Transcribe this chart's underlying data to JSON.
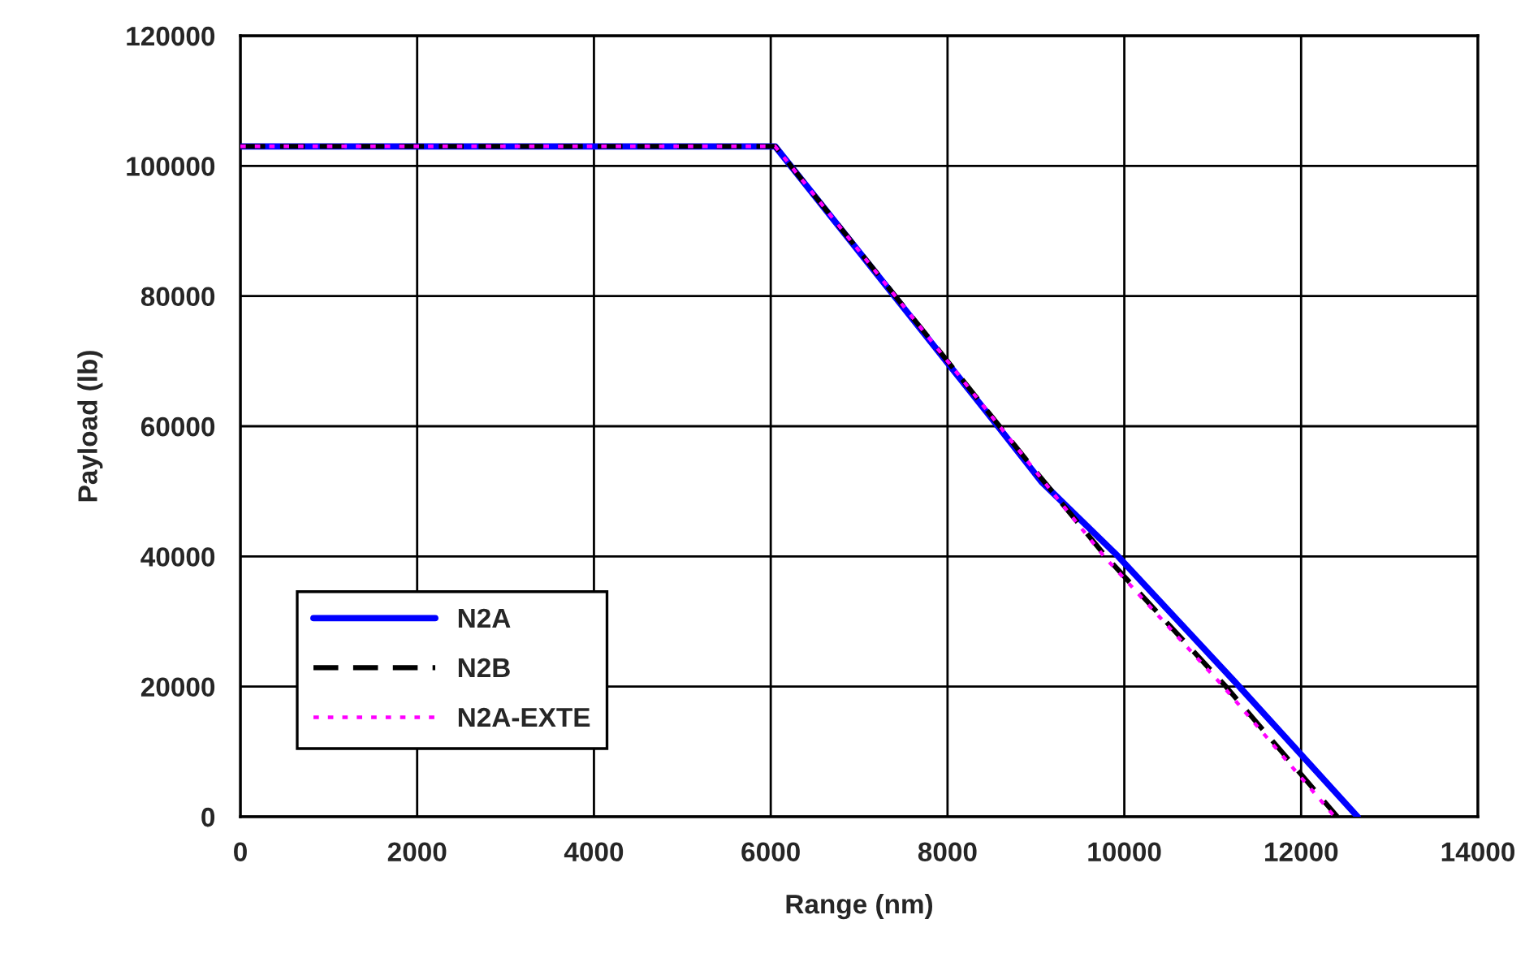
{
  "chart_data": {
    "type": "line",
    "xlabel": "Range (nm)",
    "ylabel": "Payload (lb)",
    "xlim": [
      0,
      14000
    ],
    "xticks": [
      0,
      2000,
      4000,
      6000,
      8000,
      10000,
      12000,
      14000
    ],
    "ylim": [
      0,
      120000
    ],
    "yticks": [
      0,
      20000,
      40000,
      60000,
      80000,
      100000,
      120000
    ],
    "grid": true,
    "legend": "bottom left",
    "marker": "none",
    "series": [
      {
        "name": "N2A",
        "color": "#0000ff",
        "line_style": "solid",
        "x": [
          0,
          6050,
          8570,
          9060,
          9930,
          11300,
          12640
        ],
        "values": [
          103000,
          103000,
          60000,
          51500,
          40000,
          20000,
          0
        ]
      },
      {
        "name": "N2B",
        "color": "#000000",
        "line_style": "dashed",
        "x": [
          0,
          6050,
          8000,
          9000,
          9790,
          11150,
          12410
        ],
        "values": [
          103000,
          103000,
          70000,
          53000,
          40000,
          20000,
          0
        ]
      },
      {
        "name": "N2A-EXTE",
        "color": "#ff00ff",
        "line_style": "dotted",
        "x": [
          0,
          6050,
          8000,
          9000,
          9770,
          11120,
          12380
        ],
        "values": [
          103000,
          103000,
          70000,
          53000,
          40000,
          20000,
          0
        ]
      }
    ]
  }
}
